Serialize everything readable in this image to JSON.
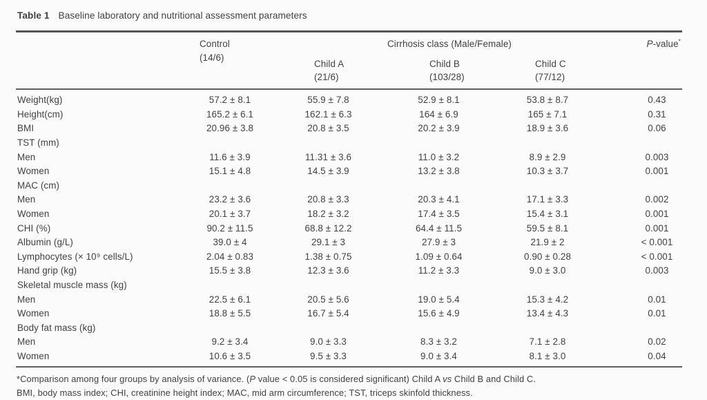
{
  "title": {
    "label": "Table 1",
    "caption": "Baseline laboratory and nutritional assessment parameters"
  },
  "header": {
    "group": "Cirrhosis class (Male/Female)",
    "control": {
      "name": "Control",
      "count": "(14/6)"
    },
    "children": [
      {
        "name": "Child A",
        "count": "(21/6)"
      },
      {
        "name": "Child B",
        "count": "(103/28)"
      },
      {
        "name": "Child C",
        "count": "(77/12)"
      }
    ],
    "p_value": {
      "p": "P",
      "rest": "-value",
      "sup": "*"
    }
  },
  "rows": [
    {
      "label": "Weight(kg)",
      "control": "57.2 ± 8.1",
      "a": "55.9 ± 7.8",
      "b": "52.9 ± 8.1",
      "c": "53.8 ± 8.7",
      "p": "0.43"
    },
    {
      "label": "Height(cm)",
      "control": "165.2 ± 6.1",
      "a": "162.1 ± 6.3",
      "b": "164 ± 6.9",
      "c": "165 ± 7.1",
      "p": "0.31"
    },
    {
      "label": "BMI",
      "control": "20.96 ± 3.8",
      "a": "20.8 ± 3.5",
      "b": "20.2 ± 3.9",
      "c": "18.9 ± 3.6",
      "p": "0.06"
    },
    {
      "label": "TST (mm)",
      "control": "",
      "a": "",
      "b": "",
      "c": "",
      "p": ""
    },
    {
      "label": "Men",
      "control": "11.6 ± 3.9",
      "a": "11.31 ± 3.6",
      "b": "11.0 ± 3.2",
      "c": "8.9 ± 2.9",
      "p": "0.003"
    },
    {
      "label": "Women",
      "control": "15.1 ± 4.8",
      "a": "14.5 ± 3.9",
      "b": "13.2 ± 3.8",
      "c": "10.3 ± 3.7",
      "p": "0.001"
    },
    {
      "label": "MAC (cm)",
      "control": "",
      "a": "",
      "b": "",
      "c": "",
      "p": ""
    },
    {
      "label": "Men",
      "control": "23.2 ± 3.6",
      "a": "20.8 ± 3.3",
      "b": "20.3 ± 4.1",
      "c": "17.1 ± 3.3",
      "p": "0.002"
    },
    {
      "label": "Women",
      "control": "20.1 ± 3.7",
      "a": "18.2 ± 3.2",
      "b": "17.4 ± 3.5",
      "c": "15.4 ± 3.1",
      "p": "0.001"
    },
    {
      "label": "CHI (%)",
      "control": "90.2 ± 11.5",
      "a": "68.8 ± 12.2",
      "b": "64.4 ± 11.5",
      "c": "59.5 ± 8.1",
      "p": "0.001"
    },
    {
      "label": "Albumin (g/L)",
      "control": "39.0 ± 4",
      "a": "29.1 ± 3",
      "b": "27.9 ± 3",
      "c": "21.9 ± 2",
      "p": "< 0.001"
    },
    {
      "label": "Lymphocytes (× 10⁹ cells/L)",
      "control": "2.04 ± 0.83",
      "a": "1.38 ± 0.75",
      "b": "1.09 ± 0.64",
      "c": "0.90 ± 0.28",
      "p": "< 0.001"
    },
    {
      "label": "Hand grip (kg)",
      "control": "15.5 ± 3.8",
      "a": "12.3 ± 3.6",
      "b": "11.2 ± 3.3",
      "c": "9.0 ± 3.0",
      "p": "0.003"
    },
    {
      "label": "Skeletal muscle mass (kg)",
      "control": "",
      "a": "",
      "b": "",
      "c": "",
      "p": ""
    },
    {
      "label": "Men",
      "control": "22.5 ± 6.1",
      "a": "20.5 ± 5.6",
      "b": "19.0 ± 5.4",
      "c": "15.3 ± 4.2",
      "p": "0.01"
    },
    {
      "label": "Women",
      "control": "18.8 ± 5.5",
      "a": "16.7 ± 5.4",
      "b": "15.6 ± 4.9",
      "c": "13.4 ± 4.3",
      "p": "0.01"
    },
    {
      "label": "Body fat mass (kg)",
      "control": "",
      "a": "",
      "b": "",
      "c": "",
      "p": ""
    },
    {
      "label": "Men",
      "control": "9.2 ± 3.4",
      "a": "9.0 ± 3.3",
      "b": "8.3 ± 3.2",
      "c": "7.1 ± 2.8",
      "p": "0.02"
    },
    {
      "label": "Women",
      "control": "10.6 ± 3.5",
      "a": "9.5 ± 3.3",
      "b": "9.0 ± 3.4",
      "c": "8.1 ± 3.0",
      "p": "0.04"
    }
  ],
  "footnotes": {
    "line1": {
      "s1": "*Comparison among four groups by analysis of variance. (",
      "s2": "P",
      "s3": " value < 0.05 is considered significant) Child A ",
      "s4": "vs",
      "s5": " Child B and Child C."
    },
    "line2": "BMI, body mass index; CHI, creatinine height index; MAC, mid arm circumference; TST, triceps skinfold thickness."
  },
  "colors": {
    "text": "#414141",
    "rule_heavy": "#545454",
    "rule_light": "#5e5e5e",
    "background": "#fbfbfb"
  }
}
